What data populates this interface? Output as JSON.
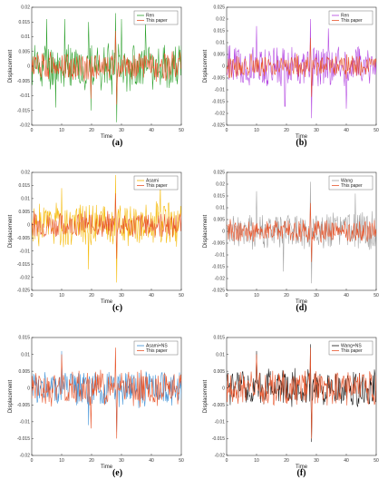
{
  "figure": {
    "captions": [
      "(a)",
      "(b)",
      "(c)",
      "(d)",
      "(e)",
      "(f)"
    ]
  },
  "chart_data": [
    {
      "type": "line",
      "xlabel": "Time",
      "ylabel": "Displacement",
      "xlim": [
        0,
        50
      ],
      "ylim": [
        -0.02,
        0.02
      ],
      "xticks": [
        0,
        10,
        20,
        30,
        40,
        50
      ],
      "yticks": [
        -0.02,
        -0.015,
        -0.01,
        -0.005,
        0,
        0.005,
        0.01,
        0.015,
        0.02
      ],
      "legend": "top-right",
      "series": [
        {
          "name": "Ren",
          "color": "#2ca02c",
          "amp": 0.0075,
          "seed": 11,
          "spikes": [
            [
              5,
              0.016
            ],
            [
              8,
              -0.014
            ],
            [
              11,
              0.016
            ],
            [
              19,
              0.015
            ],
            [
              19.8,
              -0.015
            ],
            [
              28,
              0.018
            ],
            [
              28.4,
              -0.019
            ],
            [
              30,
              0.016
            ],
            [
              38,
              0.015
            ]
          ]
        },
        {
          "name": "This paper",
          "color": "#e8552b",
          "amp": 0.0045,
          "seed": 12,
          "spikes": [
            [
              28,
              0.012
            ],
            [
              28.4,
              -0.013
            ],
            [
              19.8,
              -0.011
            ]
          ]
        }
      ]
    },
    {
      "type": "line",
      "xlabel": "Time",
      "ylabel": "Displacement",
      "xlim": [
        0,
        50
      ],
      "ylim": [
        -0.025,
        0.025
      ],
      "xticks": [
        0,
        10,
        20,
        30,
        40,
        50
      ],
      "yticks": [
        -0.025,
        -0.02,
        -0.015,
        -0.01,
        -0.005,
        0,
        0.005,
        0.01,
        0.015,
        0.02,
        0.025
      ],
      "legend": "top-right",
      "series": [
        {
          "name": "Ren",
          "color": "#b03fe0",
          "amp": 0.008,
          "seed": 21,
          "spikes": [
            [
              10,
              0.017
            ],
            [
              28,
              0.02
            ],
            [
              28.4,
              -0.022
            ],
            [
              19.5,
              -0.017
            ],
            [
              34,
              0.016
            ],
            [
              40,
              -0.018
            ]
          ]
        },
        {
          "name": "This paper",
          "color": "#e8552b",
          "amp": 0.0045,
          "seed": 22,
          "spikes": [
            [
              28,
              0.012
            ],
            [
              28.4,
              -0.013
            ]
          ]
        }
      ]
    },
    {
      "type": "line",
      "xlabel": "Time",
      "ylabel": "Displacement",
      "xlim": [
        0,
        50
      ],
      "ylim": [
        -0.025,
        0.02
      ],
      "xticks": [
        0,
        10,
        20,
        30,
        40,
        50
      ],
      "yticks": [
        -0.025,
        -0.02,
        -0.015,
        -0.01,
        -0.005,
        0,
        0.005,
        0.01,
        0.015,
        0.02
      ],
      "legend": "top-right",
      "series": [
        {
          "name": "Asami",
          "color": "#f5b800",
          "amp": 0.0075,
          "seed": 31,
          "spikes": [
            [
              19,
              -0.017
            ],
            [
              28,
              0.019
            ],
            [
              28.4,
              -0.022
            ],
            [
              10,
              0.014
            ],
            [
              43,
              0.015
            ]
          ]
        },
        {
          "name": "This paper",
          "color": "#e8552b",
          "amp": 0.0045,
          "seed": 32,
          "spikes": [
            [
              28,
              0.012
            ],
            [
              28.4,
              -0.013
            ]
          ]
        }
      ]
    },
    {
      "type": "line",
      "xlabel": "Time",
      "ylabel": "Displacement",
      "xlim": [
        0,
        50
      ],
      "ylim": [
        -0.025,
        0.025
      ],
      "xticks": [
        0,
        10,
        20,
        30,
        40,
        50
      ],
      "yticks": [
        -0.025,
        -0.02,
        -0.015,
        -0.01,
        -0.005,
        0,
        0.005,
        0.01,
        0.015,
        0.02,
        0.025
      ],
      "legend": "top-right",
      "series": [
        {
          "name": "Wang",
          "color": "#a0a0a0",
          "amp": 0.0075,
          "seed": 41,
          "spikes": [
            [
              10,
              0.017
            ],
            [
              28,
              0.021
            ],
            [
              28.4,
              -0.022
            ],
            [
              19,
              -0.017
            ],
            [
              43,
              0.016
            ]
          ]
        },
        {
          "name": "This paper",
          "color": "#e8552b",
          "amp": 0.0045,
          "seed": 42,
          "spikes": [
            [
              28,
              0.012
            ],
            [
              28.4,
              -0.013
            ]
          ]
        }
      ]
    },
    {
      "type": "line",
      "xlabel": "Time",
      "ylabel": "Displacement",
      "xlim": [
        0,
        50
      ],
      "ylim": [
        -0.02,
        0.015
      ],
      "xticks": [
        0,
        10,
        20,
        30,
        40,
        50
      ],
      "yticks": [
        -0.02,
        -0.015,
        -0.01,
        -0.005,
        0,
        0.005,
        0.01,
        0.015
      ],
      "legend": "top-right",
      "series": [
        {
          "name": "Asami+NS",
          "color": "#3a8fd6",
          "amp": 0.005,
          "seed": 51,
          "spikes": [
            [
              10,
              0.011
            ],
            [
              28.4,
              -0.013
            ],
            [
              19,
              -0.011
            ]
          ]
        },
        {
          "name": "This paper",
          "color": "#e8552b",
          "amp": 0.0048,
          "seed": 52,
          "spikes": [
            [
              28,
              0.012
            ],
            [
              28.4,
              -0.015
            ],
            [
              19.8,
              -0.012
            ],
            [
              10,
              0.01
            ]
          ]
        }
      ]
    },
    {
      "type": "line",
      "xlabel": "Time",
      "ylabel": "Displacement",
      "xlim": [
        0,
        50
      ],
      "ylim": [
        -0.02,
        0.015
      ],
      "xticks": [
        0,
        10,
        20,
        30,
        40,
        50
      ],
      "yticks": [
        -0.02,
        -0.015,
        -0.01,
        -0.005,
        0,
        0.005,
        0.01,
        0.015
      ],
      "legend": "top-right",
      "series": [
        {
          "name": "Wang+NS",
          "color": "#111111",
          "amp": 0.005,
          "seed": 61,
          "spikes": [
            [
              28,
              0.013
            ],
            [
              28.4,
              -0.016
            ],
            [
              10,
              0.011
            ]
          ]
        },
        {
          "name": "This paper",
          "color": "#e8552b",
          "amp": 0.0048,
          "seed": 62,
          "spikes": [
            [
              28,
              0.012
            ],
            [
              28.4,
              -0.015
            ],
            [
              10,
              0.01
            ]
          ]
        }
      ]
    }
  ]
}
